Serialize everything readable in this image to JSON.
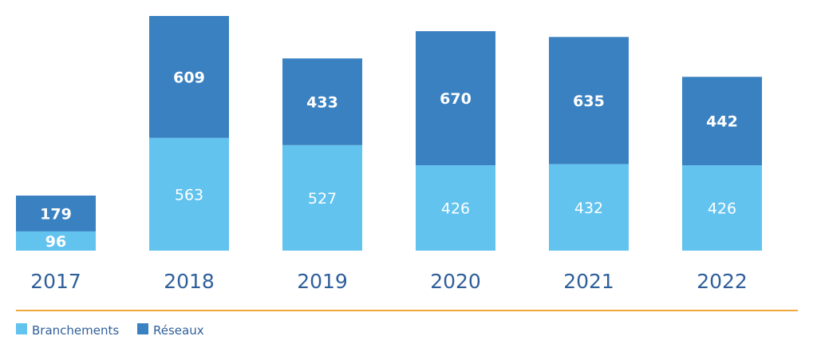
{
  "chart_data": {
    "type": "bar",
    "stacked": true,
    "categories": [
      "2017",
      "2018",
      "2019",
      "2020",
      "2021",
      "2022"
    ],
    "series": [
      {
        "name": "Branchements",
        "values": [
          96,
          563,
          527,
          426,
          432,
          426
        ]
      },
      {
        "name": "Réseaux",
        "values": [
          179,
          609,
          433,
          670,
          635,
          442
        ]
      }
    ],
    "ylim": [
      0,
      1172
    ],
    "grid": false,
    "legend_position": "bottom-left"
  },
  "colors": {
    "branchements": "#63c3ef",
    "reseaux": "#3a81c1",
    "year_text": "#2f5f9b",
    "axis_line": "#f2a93b",
    "legend_text": "#2f5f9b",
    "value_text": "#ffffff"
  }
}
